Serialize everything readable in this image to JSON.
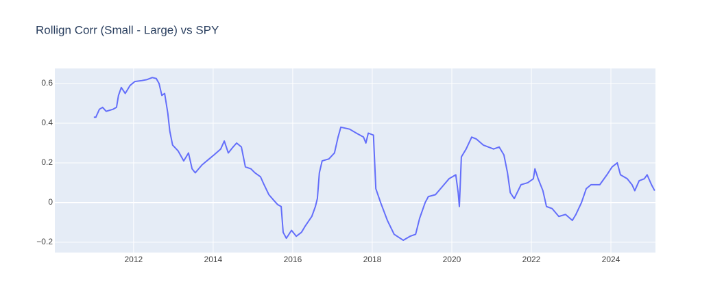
{
  "chart_data": {
    "type": "line",
    "title": "Rollign Corr (Small - Large) vs SPY",
    "x": [
      2011.0,
      2011.05,
      2011.14,
      2011.22,
      2011.31,
      2011.48,
      2011.57,
      2011.62,
      2011.69,
      2011.79,
      2011.91,
      2012.03,
      2012.21,
      2012.34,
      2012.47,
      2012.57,
      2012.64,
      2012.71,
      2012.78,
      2012.86,
      2012.91,
      2012.98,
      2013.12,
      2013.26,
      2013.38,
      2013.47,
      2013.55,
      2013.72,
      2013.9,
      2014.02,
      2014.19,
      2014.28,
      2014.38,
      2014.5,
      2014.59,
      2014.71,
      2014.81,
      2014.95,
      2015.05,
      2015.19,
      2015.28,
      2015.4,
      2015.53,
      2015.62,
      2015.71,
      2015.76,
      2015.84,
      2015.97,
      2016.09,
      2016.22,
      2016.31,
      2016.48,
      2016.57,
      2016.62,
      2016.67,
      2016.74,
      2016.91,
      2017.05,
      2017.14,
      2017.21,
      2017.43,
      2017.6,
      2017.78,
      2017.84,
      2017.9,
      2018.03,
      2018.09,
      2018.21,
      2018.38,
      2018.55,
      2018.78,
      2018.95,
      2019.09,
      2019.19,
      2019.33,
      2019.41,
      2019.59,
      2019.76,
      2019.93,
      2020.1,
      2020.16,
      2020.19,
      2020.24,
      2020.36,
      2020.5,
      2020.62,
      2020.79,
      2021.05,
      2021.19,
      2021.31,
      2021.4,
      2021.47,
      2021.57,
      2021.74,
      2021.91,
      2022.05,
      2022.09,
      2022.17,
      2022.29,
      2022.38,
      2022.52,
      2022.69,
      2022.86,
      2023.03,
      2023.12,
      2023.26,
      2023.38,
      2023.5,
      2023.72,
      2023.9,
      2024.03,
      2024.16,
      2024.24,
      2024.41,
      2024.53,
      2024.6,
      2024.71,
      2024.84,
      2024.91,
      2025.02,
      2025.1
    ],
    "series": [
      {
        "color": "#636efa",
        "values": [
          0.43,
          0.43,
          0.47,
          0.48,
          0.46,
          0.47,
          0.48,
          0.54,
          0.58,
          0.55,
          0.59,
          0.61,
          0.615,
          0.62,
          0.63,
          0.625,
          0.6,
          0.54,
          0.55,
          0.45,
          0.36,
          0.29,
          0.26,
          0.21,
          0.25,
          0.17,
          0.15,
          0.19,
          0.22,
          0.24,
          0.27,
          0.31,
          0.25,
          0.28,
          0.3,
          0.28,
          0.18,
          0.17,
          0.15,
          0.13,
          0.09,
          0.04,
          0.01,
          -0.01,
          -0.02,
          -0.15,
          -0.18,
          -0.14,
          -0.17,
          -0.15,
          -0.12,
          -0.07,
          -0.02,
          0.02,
          0.15,
          0.21,
          0.22,
          0.25,
          0.33,
          0.38,
          0.37,
          0.35,
          0.33,
          0.3,
          0.35,
          0.34,
          0.07,
          0.0,
          -0.09,
          -0.16,
          -0.19,
          -0.17,
          -0.16,
          -0.08,
          0.0,
          0.03,
          0.04,
          0.08,
          0.12,
          0.14,
          0.05,
          -0.02,
          0.23,
          0.27,
          0.33,
          0.32,
          0.29,
          0.27,
          0.28,
          0.24,
          0.15,
          0.05,
          0.02,
          0.09,
          0.1,
          0.12,
          0.17,
          0.12,
          0.06,
          -0.02,
          -0.03,
          -0.07,
          -0.06,
          -0.09,
          -0.06,
          0.0,
          0.07,
          0.09,
          0.09,
          0.14,
          0.18,
          0.2,
          0.14,
          0.12,
          0.09,
          0.06,
          0.11,
          0.12,
          0.14,
          0.09,
          0.06
        ]
      }
    ],
    "xlim": [
      2010.02,
      2025.12
    ],
    "xticks": [
      2012,
      2014,
      2016,
      2018,
      2020,
      2022,
      2024
    ],
    "ylim": [
      -0.252,
      0.676
    ],
    "yticks": [
      {
        "value": -0.2,
        "label": "−0.2"
      },
      0,
      0.2,
      0.4,
      0.6
    ],
    "grid": true
  }
}
